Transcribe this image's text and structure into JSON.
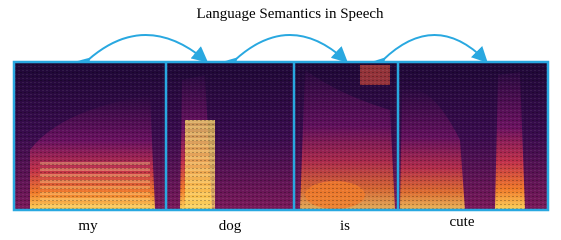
{
  "title": "Language Semantics in Speech",
  "words": [
    "my",
    "dog",
    "is",
    "cute"
  ]
}
